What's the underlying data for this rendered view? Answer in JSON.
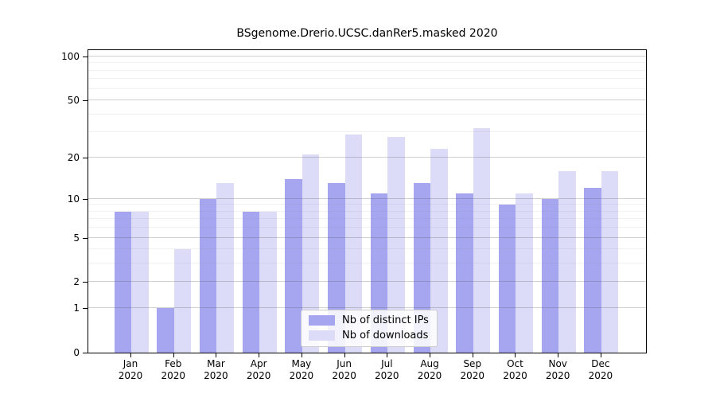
{
  "chart_data": {
    "type": "bar",
    "title": "BSgenome.Drerio.UCSC.danRer5.masked 2020",
    "months": [
      "Jan",
      "Feb",
      "Mar",
      "Apr",
      "May",
      "Jun",
      "Jul",
      "Aug",
      "Sep",
      "Oct",
      "Nov",
      "Dec"
    ],
    "year_label": "2020",
    "series": [
      {
        "name": "Nb of distinct IPs",
        "color": "#a6a6f0",
        "values": [
          8,
          1,
          10,
          8,
          14,
          13,
          11,
          13,
          11,
          9,
          10,
          12
        ]
      },
      {
        "name": "Nb of downloads",
        "color": "#dcdcf8",
        "values": [
          8,
          4,
          13,
          8,
          21,
          29,
          28,
          23,
          32,
          11,
          16,
          16
        ]
      }
    ],
    "yscale": "log10(1+x)",
    "ylim": [
      0,
      110.5
    ],
    "y_major_ticks": [
      0,
      1,
      2,
      5,
      10,
      20,
      50,
      100
    ],
    "y_minor_ticks": [
      3,
      4,
      6,
      7,
      8,
      9,
      30,
      40,
      60,
      70,
      80,
      90
    ],
    "grid": "on",
    "legend_position": "bottom-center-inside"
  }
}
